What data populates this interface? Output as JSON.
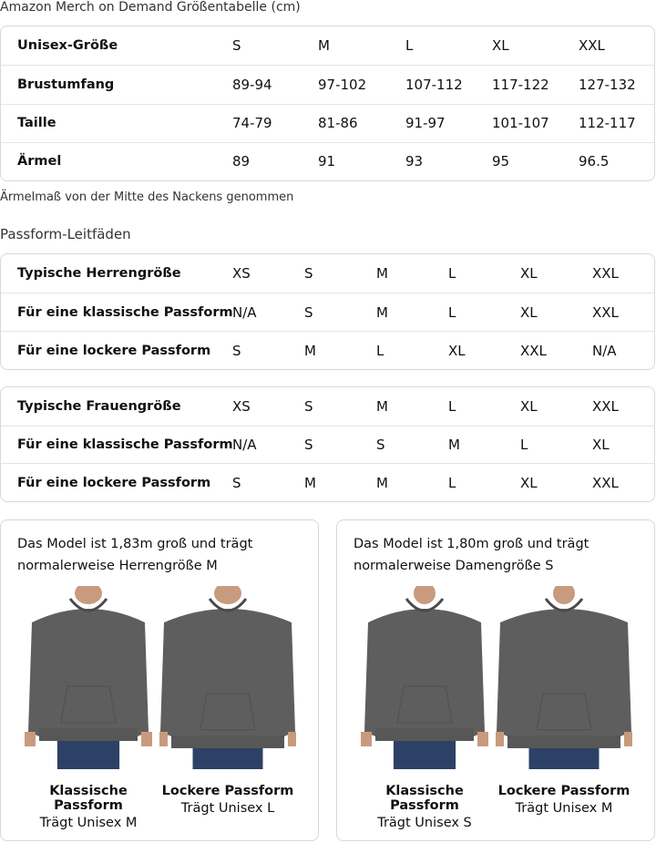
{
  "title": "Amazon Merch on Demand Größentabelle (cm)",
  "size_table": {
    "header": [
      "Unisex-Größe",
      "S",
      "M",
      "L",
      "XL",
      "XXL"
    ],
    "rows": [
      [
        "Brustumfang",
        "89-94",
        "97-102",
        "107-112",
        "117-122",
        "127-132"
      ],
      [
        "Taille",
        "74-79",
        "81-86",
        "91-97",
        "101-107",
        "112-117"
      ],
      [
        "Ärmel",
        "89",
        "91",
        "93",
        "95",
        "96.5"
      ]
    ]
  },
  "note": "Ärmelmaß von der Mitte des Nackens genommen",
  "fit_title": "Passform-Leitfäden",
  "men_table": [
    [
      "Typische Herrengröße",
      "XS",
      "S",
      "M",
      "L",
      "XL",
      "XXL"
    ],
    [
      "Für eine klassische Passform",
      "N/A",
      "S",
      "M",
      "L",
      "XL",
      "XXL"
    ],
    [
      "Für eine lockere Passform",
      "S",
      "M",
      "L",
      "XL",
      "XXL",
      "N/A"
    ]
  ],
  "women_table": [
    [
      "Typische Frauengröße",
      "XS",
      "S",
      "M",
      "L",
      "XL",
      "XXL"
    ],
    [
      "Für eine klassische Passform",
      "N/A",
      "S",
      "S",
      "M",
      "L",
      "XL"
    ],
    [
      "Für eine lockere Passform",
      "S",
      "M",
      "M",
      "L",
      "XL",
      "XXL"
    ]
  ],
  "cards": [
    {
      "intro": [
        "Das Model ist 1,83m groß und trägt",
        "normalerweise Herrengröße M"
      ],
      "figures": [
        {
          "title": "Klassische Passform",
          "sub": "Trägt Unisex M"
        },
        {
          "title": "Lockere Passform",
          "sub": "Trägt Unisex L"
        }
      ]
    },
    {
      "intro": [
        "Das Model ist 1,80m groß und trägt",
        "normalerweise Damengröße S"
      ],
      "figures": [
        {
          "title": "Klassische Passform",
          "sub": "Trägt Unisex S"
        },
        {
          "title": "Lockere Passform",
          "sub": "Trägt Unisex M"
        }
      ]
    }
  ],
  "colors": {
    "hoodie": "#5e5e5e",
    "jeans": "#2d4166",
    "skin": "#c89a7e",
    "border": "#d5d9d9"
  }
}
